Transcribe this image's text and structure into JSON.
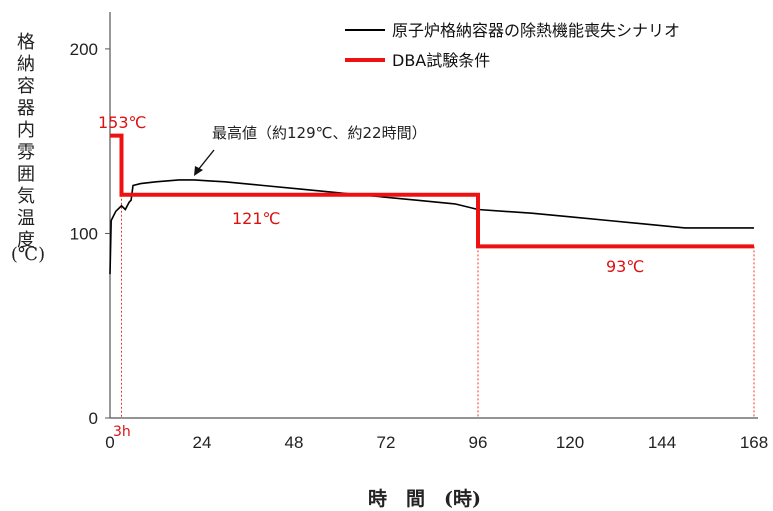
{
  "chart_data": {
    "type": "line",
    "xlabel": "時　間　(時)",
    "ylabel_chars": [
      "格",
      "納",
      "容",
      "器",
      "内",
      "雰",
      "囲",
      "気",
      "温",
      "度"
    ],
    "ylabel_unit": "(℃)",
    "xlim": [
      0,
      168
    ],
    "ylim": [
      0,
      220
    ],
    "x_ticks": [
      "0",
      "24",
      "48",
      "72",
      "96",
      "120",
      "144",
      "168"
    ],
    "x_tick_values": [
      0,
      24,
      48,
      72,
      96,
      120,
      144,
      168
    ],
    "y_ticks": [
      "0",
      "100",
      "200"
    ],
    "y_tick_values": [
      0,
      100,
      200
    ],
    "grid": false,
    "legend": {
      "position": "top-right"
    },
    "series": [
      {
        "name": "原子炉格納容器の除熱機能喪失シナリオ",
        "color": "#000000",
        "x": [
          0,
          0.3,
          1.5,
          3,
          4,
          5,
          5.5,
          6,
          8,
          12,
          18,
          22,
          26,
          30,
          40,
          50,
          60,
          70,
          80,
          90,
          96,
          110,
          120,
          130,
          140,
          150,
          160,
          168
        ],
        "y": [
          78,
          107,
          112,
          115,
          113,
          117,
          118,
          126,
          127,
          128,
          129,
          129,
          128.5,
          128,
          126,
          124,
          122,
          120,
          118,
          116,
          113,
          111,
          109,
          107,
          105,
          103,
          103,
          103
        ]
      },
      {
        "name": "DBA試験条件",
        "color": "#ee1111",
        "x": [
          0,
          3,
          3,
          96,
          96,
          168
        ],
        "y": [
          153,
          153,
          121,
          121,
          93,
          93
        ]
      }
    ],
    "annotations": [
      {
        "text": "153℃",
        "x": 0,
        "y": 153,
        "color": "#dd1111"
      },
      {
        "text": "121℃",
        "x": 40,
        "y": 121,
        "color": "#dd1111"
      },
      {
        "text": "93℃",
        "x": 132,
        "y": 93,
        "color": "#dd1111"
      },
      {
        "text": "3h",
        "x": 3,
        "y": 0,
        "color": "#dd1111"
      },
      {
        "text": "最高値（約129℃、約22時間）",
        "x": 22,
        "y": 129,
        "color": "#222222"
      }
    ],
    "reference_lines_x": [
      3,
      96,
      168
    ]
  }
}
